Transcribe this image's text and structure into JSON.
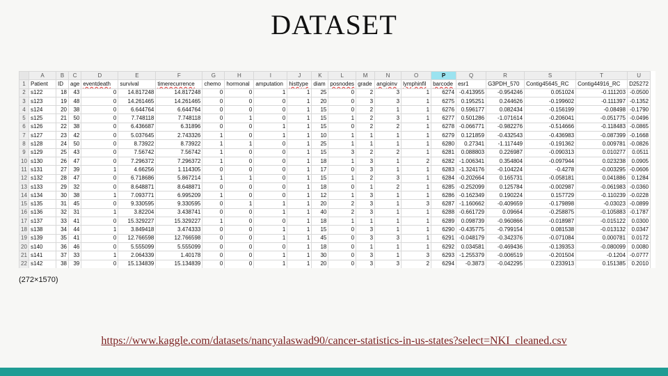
{
  "slide": {
    "title": "DATASET",
    "caption": "(272×1570)",
    "link": "https://www.kaggle.com/datasets/nancyalaswad90/cancer-statistics-in-us-states?select=NKI_cleaned.csv",
    "accent_color": "#1f9c94",
    "link_color": "#7a1f1f"
  },
  "sheet": {
    "selected_column": "P",
    "column_letters": [
      "A",
      "B",
      "C",
      "D",
      "E",
      "F",
      "G",
      "H",
      "I",
      "J",
      "K",
      "L",
      "M",
      "N",
      "O",
      "P",
      "Q",
      "R",
      "S",
      "T",
      "U"
    ],
    "header_row": [
      "Patient",
      "ID",
      "age",
      "eventdeath",
      "survival",
      "timerecurrence",
      "chemo",
      "hormonal",
      "amputation",
      "histtype",
      "diam",
      "posnodes",
      "grade",
      "angioinv",
      "lymphinfil",
      "barcode",
      "esr1",
      "G3PDH_570",
      "Contig45645_RC",
      "Contig44916_RC",
      "D25272"
    ],
    "spellcheck_headers": [
      "eventdeath",
      "timerecurrence",
      "histtype",
      "posnodes",
      "angioinv",
      "lymphinfil",
      "barcode"
    ],
    "rows": [
      [
        "s122",
        "18",
        "43",
        "0",
        "14.817248",
        "14.817248",
        "0",
        "0",
        "1",
        "1",
        "25",
        "0",
        "2",
        "3",
        "1",
        "6274",
        "-0.413955",
        "-0.954246",
        "0.051024",
        "-0.111203",
        "-0.0500"
      ],
      [
        "s123",
        "19",
        "48",
        "0",
        "14.261465",
        "14.261465",
        "0",
        "0",
        "0",
        "1",
        "20",
        "0",
        "3",
        "3",
        "1",
        "6275",
        "0.195251",
        "0.244626",
        "-0.199602",
        "-0.111397",
        "-0.1352"
      ],
      [
        "s124",
        "20",
        "38",
        "0",
        "6.644764",
        "6.644764",
        "0",
        "0",
        "0",
        "1",
        "15",
        "0",
        "2",
        "1",
        "1",
        "6276",
        "0.596177",
        "0.082434",
        "-0.156199",
        "-0.08498",
        "-0.1790"
      ],
      [
        "s125",
        "21",
        "50",
        "0",
        "7.748118",
        "7.748118",
        "0",
        "1",
        "0",
        "1",
        "15",
        "1",
        "2",
        "3",
        "1",
        "6277",
        "0.501286",
        "-1.071614",
        "-0.206041",
        "-0.051775",
        "-0.0496"
      ],
      [
        "s126",
        "22",
        "38",
        "0",
        "6.436687",
        "6.31896",
        "0",
        "0",
        "1",
        "1",
        "15",
        "0",
        "2",
        "2",
        "1",
        "6278",
        "-0.066771",
        "-0.982276",
        "-0.514666",
        "-0.118483",
        "-0.0865"
      ],
      [
        "s127",
        "23",
        "42",
        "0",
        "5.037645",
        "2.743326",
        "1",
        "0",
        "1",
        "1",
        "10",
        "1",
        "1",
        "1",
        "1",
        "6279",
        "0.121859",
        "-0.432543",
        "-0.436983",
        "-0.087399",
        "-0.1668"
      ],
      [
        "s128",
        "24",
        "50",
        "0",
        "8.73922",
        "8.73922",
        "1",
        "1",
        "0",
        "1",
        "25",
        "1",
        "1",
        "1",
        "1",
        "6280",
        "0.27341",
        "-1.117449",
        "-0.191362",
        "0.009781",
        "-0.0826"
      ],
      [
        "s129",
        "25",
        "43",
        "0",
        "7.56742",
        "7.56742",
        "1",
        "0",
        "0",
        "1",
        "15",
        "3",
        "2",
        "2",
        "1",
        "6281",
        "0.088803",
        "0.226987",
        "-0.090313",
        "0.010277",
        "0.0511"
      ],
      [
        "s130",
        "26",
        "47",
        "0",
        "7.296372",
        "7.296372",
        "1",
        "0",
        "0",
        "1",
        "18",
        "1",
        "3",
        "1",
        "2",
        "6282",
        "-1.006341",
        "0.354804",
        "-0.097944",
        "0.023238",
        "0.0905"
      ],
      [
        "s131",
        "27",
        "39",
        "1",
        "4.66256",
        "1.114305",
        "0",
        "0",
        "0",
        "1",
        "17",
        "0",
        "3",
        "1",
        "1",
        "6283",
        "-1.324176",
        "-0.104224",
        "-0.4278",
        "-0.003295",
        "-0.0606"
      ],
      [
        "s132",
        "28",
        "47",
        "0",
        "6.718686",
        "5.867214",
        "1",
        "1",
        "0",
        "1",
        "15",
        "1",
        "2",
        "3",
        "1",
        "6284",
        "-0.202664",
        "0.165731",
        "-0.058181",
        "0.041886",
        "0.1284"
      ],
      [
        "s133",
        "29",
        "32",
        "0",
        "8.648871",
        "8.648871",
        "0",
        "0",
        "0",
        "1",
        "18",
        "0",
        "1",
        "2",
        "1",
        "6285",
        "-0.252099",
        "0.125784",
        "-0.002987",
        "-0.061983",
        "-0.0360"
      ],
      [
        "s134",
        "30",
        "38",
        "1",
        "7.093771",
        "6.995209",
        "1",
        "0",
        "0",
        "1",
        "12",
        "1",
        "3",
        "1",
        "1",
        "6286",
        "-0.162349",
        "0.190224",
        "0.157729",
        "-0.110239",
        "-0.0228"
      ],
      [
        "s135",
        "31",
        "45",
        "0",
        "9.330595",
        "9.330595",
        "0",
        "1",
        "1",
        "1",
        "20",
        "2",
        "3",
        "1",
        "3",
        "6287",
        "-1.160662",
        "-0.409659",
        "-0.179898",
        "-0.03023",
        "-0.0899"
      ],
      [
        "s136",
        "32",
        "31",
        "1",
        "3.82204",
        "3.438741",
        "0",
        "0",
        "1",
        "1",
        "40",
        "2",
        "3",
        "1",
        "1",
        "6288",
        "-0.661729",
        "0.09664",
        "-0.258875",
        "-0.105883",
        "-0.1787"
      ],
      [
        "s137",
        "33",
        "41",
        "0",
        "15.329227",
        "15.329227",
        "1",
        "0",
        "0",
        "1",
        "18",
        "1",
        "1",
        "1",
        "1",
        "6289",
        "0.098739",
        "-0.960866",
        "-0.018987",
        "-0.015122",
        "0.0300"
      ],
      [
        "s138",
        "34",
        "44",
        "1",
        "3.849418",
        "3.474333",
        "0",
        "0",
        "1",
        "1",
        "15",
        "0",
        "3",
        "1",
        "1",
        "6290",
        "-0.435775",
        "-0.799154",
        "0.081538",
        "-0.013132",
        "0.0347"
      ],
      [
        "s139",
        "35",
        "41",
        "0",
        "12.766598",
        "12.766598",
        "0",
        "0",
        "1",
        "1",
        "45",
        "0",
        "3",
        "3",
        "1",
        "6291",
        "-0.048179",
        "-0.342376",
        "-0.071084",
        "0.000781",
        "0.0172"
      ],
      [
        "s140",
        "36",
        "46",
        "0",
        "5.555099",
        "5.555099",
        "0",
        "0",
        "0",
        "1",
        "18",
        "0",
        "1",
        "1",
        "1",
        "6292",
        "0.034581",
        "-0.469436",
        "-0.139353",
        "-0.080099",
        "0.0080"
      ],
      [
        "s141",
        "37",
        "33",
        "1",
        "2.064339",
        "1.40178",
        "0",
        "0",
        "1",
        "1",
        "30",
        "0",
        "3",
        "1",
        "3",
        "6293",
        "-1.255379",
        "-0.006519",
        "-0.201504",
        "-0.1204",
        "-0.0777"
      ],
      [
        "s142",
        "38",
        "39",
        "0",
        "15.134839",
        "15.134839",
        "0",
        "0",
        "1",
        "1",
        "20",
        "0",
        "3",
        "3",
        "2",
        "6294",
        "-0.3873",
        "-0.042295",
        "0.233913",
        "0.151385",
        "0.2010"
      ],
      [
        "s143",
        "39",
        "38",
        "0",
        "14.12731",
        "14.12731",
        "0",
        "0",
        "1",
        "1",
        "30",
        "0",
        "3",
        "1",
        "3",
        "6296",
        "-1.088931",
        "0.081496",
        "-0.546575",
        "-0.033396",
        "-0.1729"
      ],
      [
        "s145",
        "40",
        "48",
        "0",
        "5.486653",
        "5.486653",
        "1",
        "1",
        "0",
        "1",
        "19",
        "2",
        "2",
        "3",
        "1",
        "6297",
        "-0.164632",
        "0.271391",
        "-0.119456",
        "-0.073048",
        "0.0720"
      ]
    ]
  }
}
